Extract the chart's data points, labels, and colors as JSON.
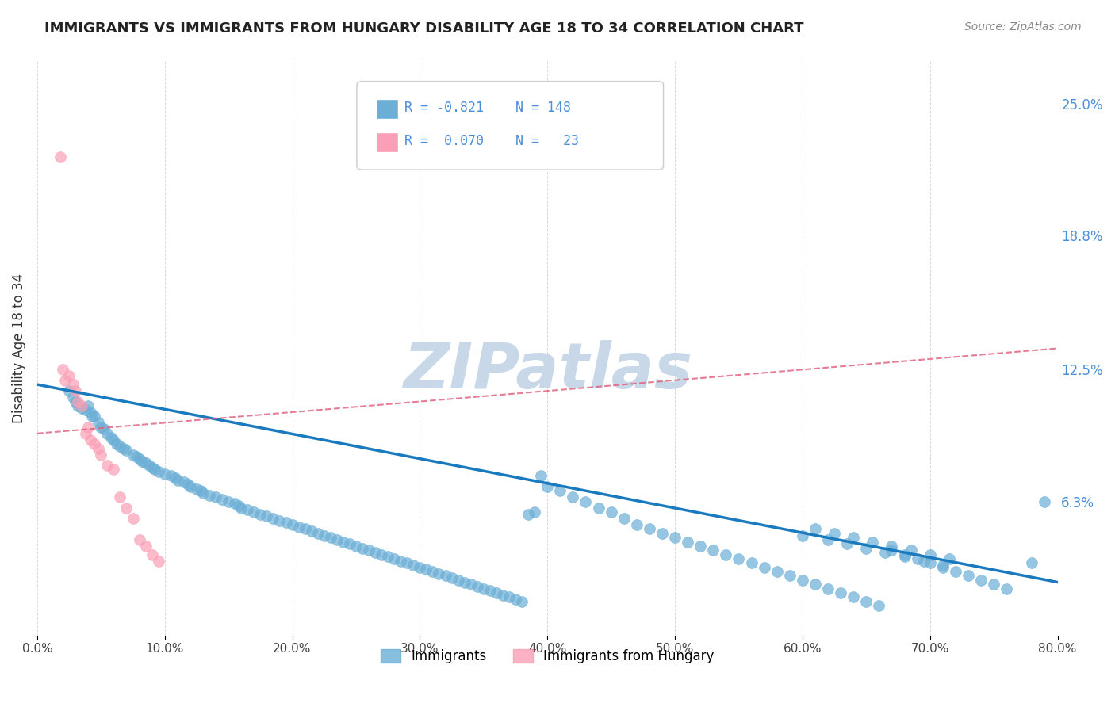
{
  "title": "IMMIGRANTS VS IMMIGRANTS FROM HUNGARY DISABILITY AGE 18 TO 34 CORRELATION CHART",
  "source": "Source: ZipAtlas.com",
  "xlabel_ticks": [
    "0.0%",
    "10.0%",
    "20.0%",
    "30.0%",
    "40.0%",
    "50.0%",
    "60.0%",
    "70.0%",
    "80.0%"
  ],
  "ylabel": "Disability Age 18 to 34",
  "right_yticks": [
    "25.0%",
    "18.8%",
    "12.5%",
    "6.3%"
  ],
  "right_ytick_vals": [
    0.25,
    0.188,
    0.125,
    0.063
  ],
  "xlim": [
    0.0,
    0.8
  ],
  "ylim": [
    0.0,
    0.27
  ],
  "blue_color": "#6baed6",
  "pink_color": "#fa9fb5",
  "trend_blue": "#1a7abf",
  "trend_pink": "#e05c7a",
  "grid_color": "#d0d0d0",
  "watermark_color": "#c8d8e8",
  "right_tick_color": "#4a90d9",
  "blue_points_x": [
    0.025,
    0.028,
    0.03,
    0.032,
    0.035,
    0.038,
    0.04,
    0.042,
    0.043,
    0.045,
    0.048,
    0.05,
    0.052,
    0.055,
    0.058,
    0.06,
    0.062,
    0.065,
    0.068,
    0.07,
    0.075,
    0.078,
    0.08,
    0.082,
    0.085,
    0.088,
    0.09,
    0.092,
    0.095,
    0.1,
    0.105,
    0.108,
    0.11,
    0.115,
    0.118,
    0.12,
    0.125,
    0.128,
    0.13,
    0.135,
    0.14,
    0.145,
    0.15,
    0.155,
    0.158,
    0.16,
    0.165,
    0.17,
    0.175,
    0.18,
    0.185,
    0.19,
    0.195,
    0.2,
    0.205,
    0.21,
    0.215,
    0.22,
    0.225,
    0.23,
    0.235,
    0.24,
    0.245,
    0.25,
    0.255,
    0.26,
    0.265,
    0.27,
    0.275,
    0.28,
    0.285,
    0.29,
    0.295,
    0.3,
    0.305,
    0.31,
    0.315,
    0.32,
    0.325,
    0.33,
    0.335,
    0.34,
    0.345,
    0.35,
    0.355,
    0.36,
    0.365,
    0.37,
    0.375,
    0.38,
    0.385,
    0.39,
    0.395,
    0.4,
    0.41,
    0.42,
    0.43,
    0.44,
    0.45,
    0.46,
    0.47,
    0.48,
    0.49,
    0.5,
    0.51,
    0.52,
    0.53,
    0.54,
    0.55,
    0.56,
    0.57,
    0.58,
    0.59,
    0.6,
    0.61,
    0.62,
    0.63,
    0.64,
    0.65,
    0.66,
    0.67,
    0.68,
    0.69,
    0.7,
    0.71,
    0.72,
    0.73,
    0.74,
    0.75,
    0.76,
    0.6,
    0.62,
    0.635,
    0.65,
    0.665,
    0.68,
    0.695,
    0.71,
    0.79,
    0.61,
    0.625,
    0.64,
    0.655,
    0.67,
    0.685,
    0.7,
    0.715,
    0.78
  ],
  "blue_points_y": [
    0.115,
    0.112,
    0.11,
    0.108,
    0.107,
    0.106,
    0.108,
    0.105,
    0.103,
    0.103,
    0.1,
    0.098,
    0.097,
    0.095,
    0.093,
    0.092,
    0.09,
    0.089,
    0.088,
    0.087,
    0.085,
    0.084,
    0.083,
    0.082,
    0.081,
    0.08,
    0.079,
    0.078,
    0.077,
    0.076,
    0.075,
    0.074,
    0.073,
    0.072,
    0.071,
    0.07,
    0.069,
    0.068,
    0.067,
    0.066,
    0.065,
    0.064,
    0.063,
    0.062,
    0.061,
    0.06,
    0.059,
    0.058,
    0.057,
    0.056,
    0.055,
    0.054,
    0.053,
    0.052,
    0.051,
    0.05,
    0.049,
    0.048,
    0.047,
    0.046,
    0.045,
    0.044,
    0.043,
    0.042,
    0.041,
    0.04,
    0.039,
    0.038,
    0.037,
    0.036,
    0.035,
    0.034,
    0.033,
    0.032,
    0.031,
    0.03,
    0.029,
    0.028,
    0.027,
    0.026,
    0.025,
    0.024,
    0.023,
    0.022,
    0.021,
    0.02,
    0.019,
    0.018,
    0.017,
    0.016,
    0.057,
    0.058,
    0.075,
    0.07,
    0.068,
    0.065,
    0.063,
    0.06,
    0.058,
    0.055,
    0.052,
    0.05,
    0.048,
    0.046,
    0.044,
    0.042,
    0.04,
    0.038,
    0.036,
    0.034,
    0.032,
    0.03,
    0.028,
    0.026,
    0.024,
    0.022,
    0.02,
    0.018,
    0.016,
    0.014,
    0.04,
    0.038,
    0.036,
    0.034,
    0.032,
    0.03,
    0.028,
    0.026,
    0.024,
    0.022,
    0.047,
    0.045,
    0.043,
    0.041,
    0.039,
    0.037,
    0.035,
    0.033,
    0.063,
    0.05,
    0.048,
    0.046,
    0.044,
    0.042,
    0.04,
    0.038,
    0.036,
    0.034
  ],
  "pink_points_x": [
    0.018,
    0.02,
    0.022,
    0.025,
    0.028,
    0.03,
    0.032,
    0.035,
    0.038,
    0.04,
    0.042,
    0.045,
    0.048,
    0.05,
    0.055,
    0.06,
    0.065,
    0.07,
    0.075,
    0.08,
    0.085,
    0.09,
    0.095
  ],
  "pink_points_y": [
    0.225,
    0.125,
    0.12,
    0.122,
    0.118,
    0.115,
    0.11,
    0.108,
    0.095,
    0.098,
    0.092,
    0.09,
    0.088,
    0.085,
    0.08,
    0.078,
    0.065,
    0.06,
    0.055,
    0.045,
    0.042,
    0.038,
    0.035
  ],
  "blue_trend_x": [
    0.0,
    0.8
  ],
  "blue_trend_y_start": 0.118,
  "blue_trend_y_end": 0.025,
  "pink_trend_x": [
    0.0,
    0.8
  ],
  "pink_trend_y_start": 0.095,
  "pink_trend_y_end": 0.135
}
